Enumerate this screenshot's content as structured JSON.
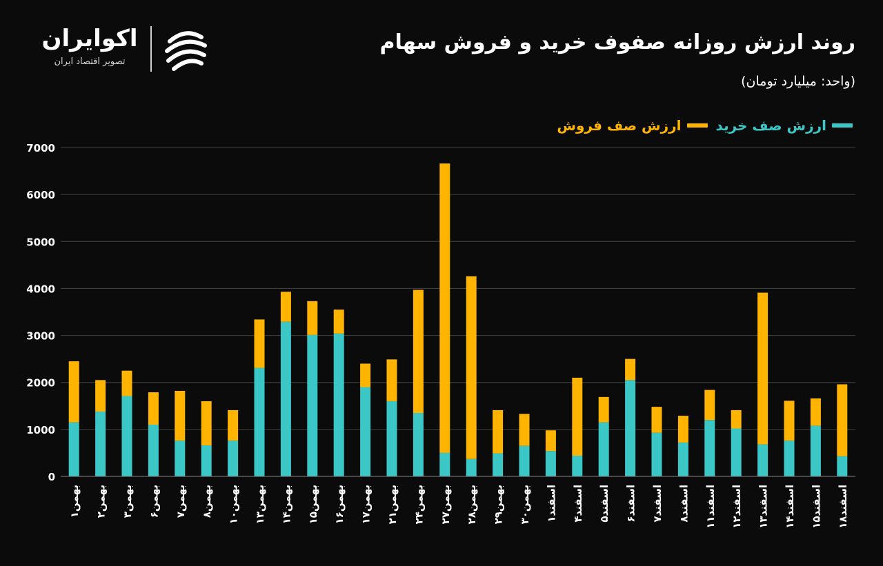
{
  "header": {
    "title": "روند ارزش روزانه صفوف خرید و فروش سهام",
    "subtitle": "(واحد: میلیارد تومان)"
  },
  "logo": {
    "name": "اکوایران",
    "tagline": "تصویر اقتصاد ایران",
    "icon": "ecoiran-logo-icon"
  },
  "legend": {
    "buy": "ارزش صف خرید",
    "sell": "ارزش صف فروش"
  },
  "colors": {
    "background": "#0b0b0b",
    "buy": "#3cc7c7",
    "sell": "#ffb400",
    "grid": "#444444"
  },
  "chart_data": {
    "type": "bar",
    "stacked": true,
    "title": "روند ارزش روزانه صفوف خرید و فروش سهام",
    "subtitle": "(واحد: میلیارد تومان)",
    "ylim": [
      0,
      7000
    ],
    "yticks": [
      0,
      1000,
      2000,
      3000,
      4000,
      5000,
      6000,
      7000
    ],
    "ytick_labels": [
      "0",
      "1000",
      "2000",
      "3000",
      "4000",
      "5000",
      "6000",
      "7000"
    ],
    "grid": true,
    "legend_position": "top-right",
    "categories": [
      "بهمن۱",
      "بهمن۲",
      "بهمن۳",
      "بهمن۶",
      "بهمن۷",
      "بهمن۸",
      "بهمن۱۰",
      "بهمن۱۳",
      "بهمن۱۴",
      "بهمن۱۵",
      "بهمن۱۶",
      "بهمن۱۷",
      "بهمن۲۱",
      "بهمن۲۴",
      "بهمن۲۷",
      "بهمن۲۸",
      "بهمن۲۹",
      "بهمن۳۰",
      "اسفند۱",
      "اسفند۴",
      "اسفند۵",
      "اسفند۶",
      "اسفند۷",
      "اسفند۸",
      "اسفند۱۱",
      "اسفند۱۲",
      "اسفند۱۳",
      "اسفند۱۴",
      "اسفند۱۵",
      "اسفند۱۸"
    ],
    "series": [
      {
        "name": "ارزش صف خرید",
        "values": [
          1150,
          1380,
          1710,
          1100,
          760,
          660,
          760,
          2310,
          3290,
          3010,
          3040,
          1900,
          1600,
          1350,
          500,
          370,
          490,
          650,
          540,
          440,
          1150,
          2050,
          930,
          720,
          1200,
          1020,
          680,
          760,
          1080,
          430
        ]
      },
      {
        "name": "ارزش صف فروش",
        "values": [
          1300,
          670,
          540,
          690,
          1060,
          940,
          650,
          1030,
          640,
          720,
          510,
          500,
          890,
          2620,
          6160,
          3890,
          920,
          680,
          440,
          1660,
          540,
          450,
          550,
          570,
          640,
          390,
          3230,
          850,
          580,
          1530
        ]
      }
    ]
  }
}
